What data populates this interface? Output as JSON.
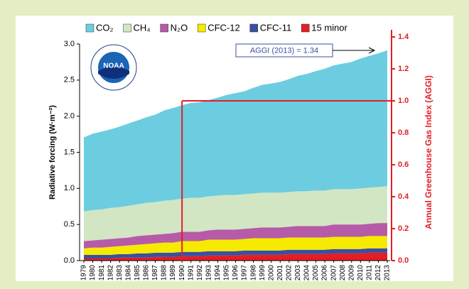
{
  "chart_data": {
    "type": "stacked_area",
    "y_label": "Radiative forcing (W·m⁻²)",
    "y2_label": "Annual Greenhouse Gas Index (AGGI)",
    "annotation": "AGGI (2013) = 1.34",
    "logo": "NOAA",
    "legend": "top",
    "x": [
      1979,
      1980,
      1981,
      1982,
      1983,
      1984,
      1985,
      1986,
      1987,
      1988,
      1989,
      1990,
      1991,
      1992,
      1993,
      1994,
      1995,
      1996,
      1997,
      1998,
      1999,
      2000,
      2001,
      2002,
      2003,
      2004,
      2005,
      2006,
      2007,
      2008,
      2009,
      2010,
      2011,
      2012,
      2013
    ],
    "xlim": [
      1979,
      2013
    ],
    "ylim": [
      0,
      3
    ],
    "yticks": [
      {
        "value": 0,
        "label": "0.0"
      },
      0.5,
      {
        "value": 1,
        "label": "1.0"
      },
      1.5,
      {
        "value": 2,
        "label": "2.0"
      },
      2.5,
      {
        "value": 3,
        "label": "3.0"
      }
    ],
    "y2lim": [
      0,
      1.4
    ],
    "y2ticks": [
      {
        "value": 0,
        "label": "0.0"
      },
      0.2,
      0.4,
      0.6,
      0.8,
      {
        "value": 1,
        "label": "1.0"
      },
      1.2,
      1.4
    ],
    "reference": {
      "x": 1990,
      "y2": 1
    },
    "series": [
      {
        "name": "CO₂",
        "color": "#6ccde0",
        "values": [
          1.027,
          1.058,
          1.077,
          1.089,
          1.115,
          1.14,
          1.162,
          1.184,
          1.211,
          1.25,
          1.274,
          1.293,
          1.313,
          1.324,
          1.334,
          1.357,
          1.384,
          1.41,
          1.426,
          1.464,
          1.495,
          1.513,
          1.535,
          1.564,
          1.6,
          1.627,
          1.655,
          1.688,
          1.714,
          1.738,
          1.761,
          1.799,
          1.826,
          1.851,
          1.883
        ]
      },
      {
        "name": "CH₄",
        "color": "#d2e6c4",
        "values": [
          0.41,
          0.42,
          0.42,
          0.43,
          0.43,
          0.44,
          0.44,
          0.45,
          0.45,
          0.46,
          0.46,
          0.46,
          0.47,
          0.47,
          0.47,
          0.47,
          0.48,
          0.48,
          0.48,
          0.48,
          0.48,
          0.48,
          0.48,
          0.48,
          0.48,
          0.48,
          0.49,
          0.49,
          0.49,
          0.49,
          0.49,
          0.5,
          0.5,
          0.5,
          0.51
        ]
      },
      {
        "name": "N₂O",
        "color": "#b65ba8",
        "values": [
          0.1,
          0.1,
          0.11,
          0.11,
          0.11,
          0.11,
          0.12,
          0.12,
          0.12,
          0.12,
          0.13,
          0.13,
          0.13,
          0.13,
          0.13,
          0.14,
          0.14,
          0.14,
          0.14,
          0.14,
          0.15,
          0.15,
          0.15,
          0.15,
          0.16,
          0.16,
          0.16,
          0.16,
          0.17,
          0.17,
          0.17,
          0.17,
          0.17,
          0.18,
          0.18
        ]
      },
      {
        "name": "CFC-12",
        "color": "#f5ea00",
        "values": [
          0.09,
          0.1,
          0.1,
          0.11,
          0.11,
          0.12,
          0.12,
          0.13,
          0.13,
          0.14,
          0.14,
          0.15,
          0.15,
          0.15,
          0.16,
          0.16,
          0.16,
          0.16,
          0.16,
          0.17,
          0.17,
          0.17,
          0.17,
          0.17,
          0.17,
          0.17,
          0.17,
          0.17,
          0.17,
          0.17,
          0.17,
          0.17,
          0.17,
          0.17,
          0.17
        ]
      },
      {
        "name": "CFC-11",
        "color": "#3a4fa0",
        "values": [
          0.05,
          0.05,
          0.05,
          0.05,
          0.05,
          0.05,
          0.06,
          0.06,
          0.06,
          0.06,
          0.06,
          0.06,
          0.06,
          0.06,
          0.06,
          0.06,
          0.06,
          0.06,
          0.06,
          0.06,
          0.06,
          0.06,
          0.06,
          0.06,
          0.06,
          0.06,
          0.06,
          0.06,
          0.06,
          0.06,
          0.06,
          0.06,
          0.06,
          0.06,
          0.06
        ]
      },
      {
        "name": "15 minor",
        "color": "#e31e24",
        "values": [
          0.03,
          0.03,
          0.03,
          0.03,
          0.04,
          0.04,
          0.04,
          0.04,
          0.05,
          0.05,
          0.05,
          0.06,
          0.06,
          0.06,
          0.07,
          0.07,
          0.07,
          0.07,
          0.08,
          0.08,
          0.08,
          0.08,
          0.08,
          0.09,
          0.09,
          0.09,
          0.09,
          0.09,
          0.1,
          0.1,
          0.1,
          0.1,
          0.11,
          0.11,
          0.11
        ]
      }
    ]
  }
}
